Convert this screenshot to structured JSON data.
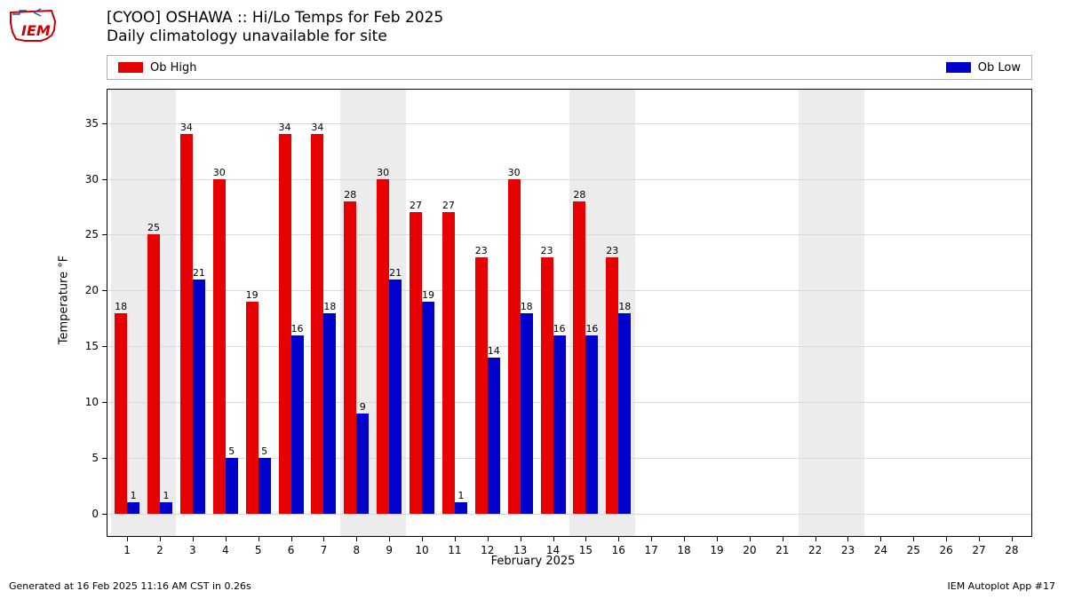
{
  "title_line1": "[CYOO] OSHAWA :: Hi/Lo Temps for Feb 2025",
  "title_line2": "Daily climatology unavailable for site",
  "ylabel": "Temperature °F",
  "xlabel": "February 2025",
  "legend": {
    "high": "Ob High",
    "low": "Ob Low"
  },
  "footer_left": "Generated at 16 Feb 2025 11:16 AM CST in 0.26s",
  "footer_right": "IEM Autoplot App #17",
  "chart": {
    "type": "bar",
    "ylim": [
      -2,
      38
    ],
    "yticks": [
      0,
      5,
      10,
      15,
      20,
      25,
      30,
      35
    ],
    "days": [
      1,
      2,
      3,
      4,
      5,
      6,
      7,
      8,
      9,
      10,
      11,
      12,
      13,
      14,
      15,
      16,
      17,
      18,
      19,
      20,
      21,
      22,
      23,
      24,
      25,
      26,
      27,
      28
    ],
    "highs": [
      18,
      25,
      34,
      30,
      19,
      34,
      34,
      28,
      30,
      27,
      27,
      23,
      30,
      23,
      28,
      23,
      null,
      null,
      null,
      null,
      null,
      null,
      null,
      null,
      null,
      null,
      null,
      null
    ],
    "lows": [
      1,
      1,
      21,
      5,
      5,
      16,
      18,
      9,
      21,
      19,
      1,
      14,
      18,
      16,
      16,
      18,
      null,
      null,
      null,
      null,
      null,
      null,
      null,
      null,
      null,
      null,
      null,
      null
    ],
    "high_color": "#e60000",
    "low_color": "#0000cd",
    "bar_width": 0.38,
    "background_color": "#ffffff",
    "weekend_band_color": "#ececec",
    "grid_color": "#d9d9d9",
    "weekend_bands": [
      [
        0.5,
        2.5
      ],
      [
        7.5,
        9.5
      ],
      [
        14.5,
        16.5
      ],
      [
        21.5,
        23.5
      ]
    ],
    "label_fontsize": 11,
    "tick_fontsize": 12,
    "axis_fontsize": 13,
    "title_fontsize": 17
  }
}
